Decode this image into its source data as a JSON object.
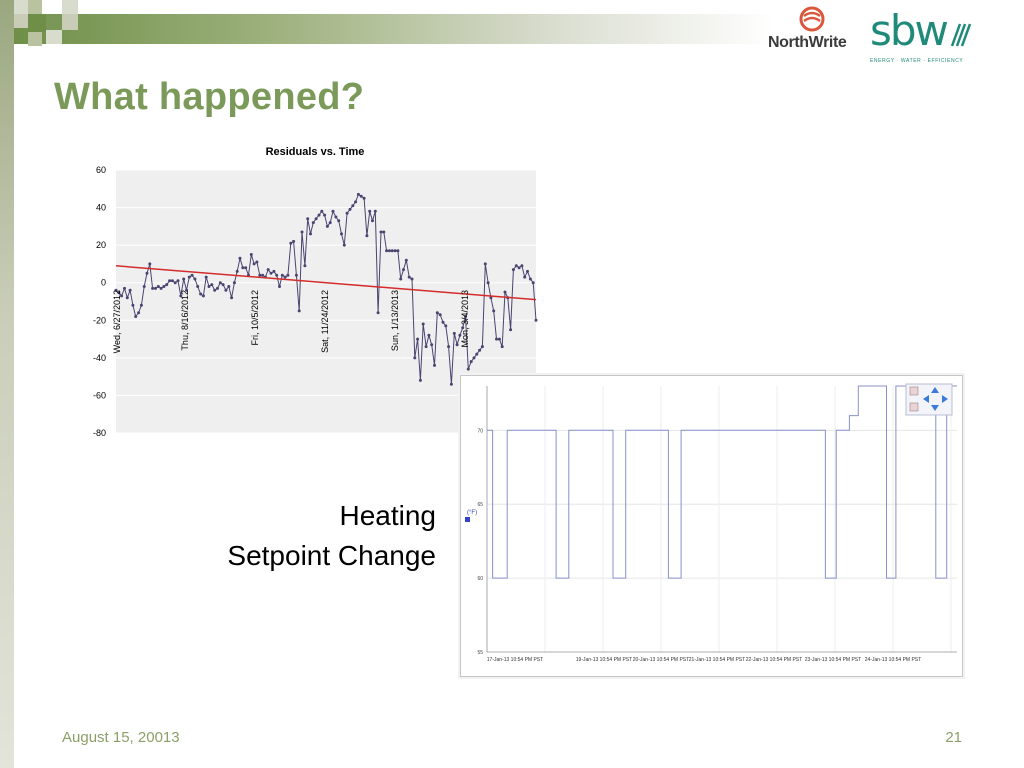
{
  "slide": {
    "title": "What happened?",
    "caption_line1": "Heating",
    "caption_line2": "Setpoint Change",
    "footer_date": "August 15, 20013",
    "page_number": "21",
    "accent_color": "#7b9a5a",
    "footer_color": "#8aa068"
  },
  "logos": {
    "northwrite": "NorthWrite",
    "sbw": "sbw",
    "sbw_tagline": "ENERGY · WATER · EFFICIENCY"
  },
  "chart_data": [
    {
      "type": "line",
      "title": "Residuals vs. Time",
      "xlabel": "",
      "ylabel": "",
      "ylim": [
        -80,
        60
      ],
      "yticks": [
        60,
        40,
        20,
        0,
        -20,
        -40,
        -60,
        -80
      ],
      "x_tick_labels": [
        "Wed, 6/27/2012",
        "Thu, 8/16/2012",
        "Fri, 10/5/2012",
        "Sat, 11/24/2012",
        "Sun, 1/13/2013",
        "Mon, 3/4/2013"
      ],
      "grid": true,
      "series": [
        {
          "color": "#4a4470",
          "values": [
            -4,
            -5,
            -7,
            -3,
            -8,
            -4,
            -12,
            -18,
            -16,
            -12,
            -2,
            5,
            10,
            -3,
            -3,
            -2,
            -3,
            -2,
            -1,
            1,
            1,
            0,
            1,
            -7,
            2,
            -4,
            3,
            4,
            2,
            -2,
            -6,
            -7,
            3,
            -2,
            -1,
            -4,
            -3,
            0,
            -1,
            -4,
            -2,
            -8,
            0,
            6,
            13,
            8,
            8,
            4,
            15,
            10,
            11,
            4,
            4,
            3,
            7,
            5,
            6,
            4,
            -2,
            4,
            3,
            4,
            21,
            22,
            4,
            -15,
            27,
            9,
            34,
            26,
            32,
            34,
            36,
            38,
            36,
            30,
            32,
            38,
            35,
            33,
            26,
            20,
            37,
            39,
            41,
            43,
            47,
            46,
            45,
            25,
            38,
            33,
            38,
            -16,
            27,
            27,
            17,
            17,
            17,
            17,
            17,
            2,
            7,
            12,
            3,
            2,
            -40,
            -30,
            -52,
            -22,
            -34,
            -28,
            -33,
            -44,
            -16,
            -17,
            -21,
            -23,
            -34,
            -54,
            -27,
            -33,
            -28,
            -24,
            -18,
            -46,
            -42,
            -40,
            -38,
            -36,
            -34,
            10,
            0,
            -8,
            -15,
            -30,
            -30,
            -34,
            -5,
            -8,
            -25,
            7,
            9,
            8,
            9,
            3,
            6,
            2,
            0,
            -20
          ]
        }
      ],
      "trendline": {
        "color": "#d42b2b",
        "start": 9,
        "end": -9
      }
    },
    {
      "type": "line",
      "title": "",
      "ylabel": "(°F)",
      "ylim": [
        55,
        73
      ],
      "yticks": [
        70,
        65,
        60,
        55
      ],
      "x_tick_labels": [
        "17-Jan-13 10:54 PM PST",
        "19-Jan-13 10:54 PM PST",
        "20-Jan-13 10:54 PM PST",
        "21-Jan-13 10:54 PM PST",
        "22-Jan-13 10:54 PM PST",
        "23-Jan-13 10:54 PM PST",
        "24-Jan-13 10:54 PM PST"
      ],
      "series": [
        {
          "color": "#8890cc",
          "x": [
            0,
            0.012,
            0.012,
            0.043,
            0.043,
            0.147,
            0.147,
            0.174,
            0.174,
            0.268,
            0.268,
            0.295,
            0.295,
            0.386,
            0.386,
            0.413,
            0.413,
            0.5,
            0.5,
            0.72,
            0.72,
            0.743,
            0.743,
            0.771,
            0.771,
            0.79,
            0.79,
            0.85,
            0.85,
            0.87,
            0.87,
            0.955,
            0.955,
            0.978,
            0.978,
            1
          ],
          "values": [
            70,
            70,
            60,
            60,
            70,
            70,
            60,
            60,
            70,
            70,
            60,
            60,
            70,
            70,
            60,
            60,
            70,
            70,
            70,
            70,
            60,
            60,
            70,
            70,
            71,
            71,
            73,
            73,
            60,
            60,
            73,
            73,
            60,
            60,
            73,
            73
          ]
        }
      ]
    }
  ],
  "controls": {
    "zoom_in": "zoom-in-icon",
    "zoom_out": "zoom-out-icon",
    "pan": "pan-arrows-icon"
  }
}
